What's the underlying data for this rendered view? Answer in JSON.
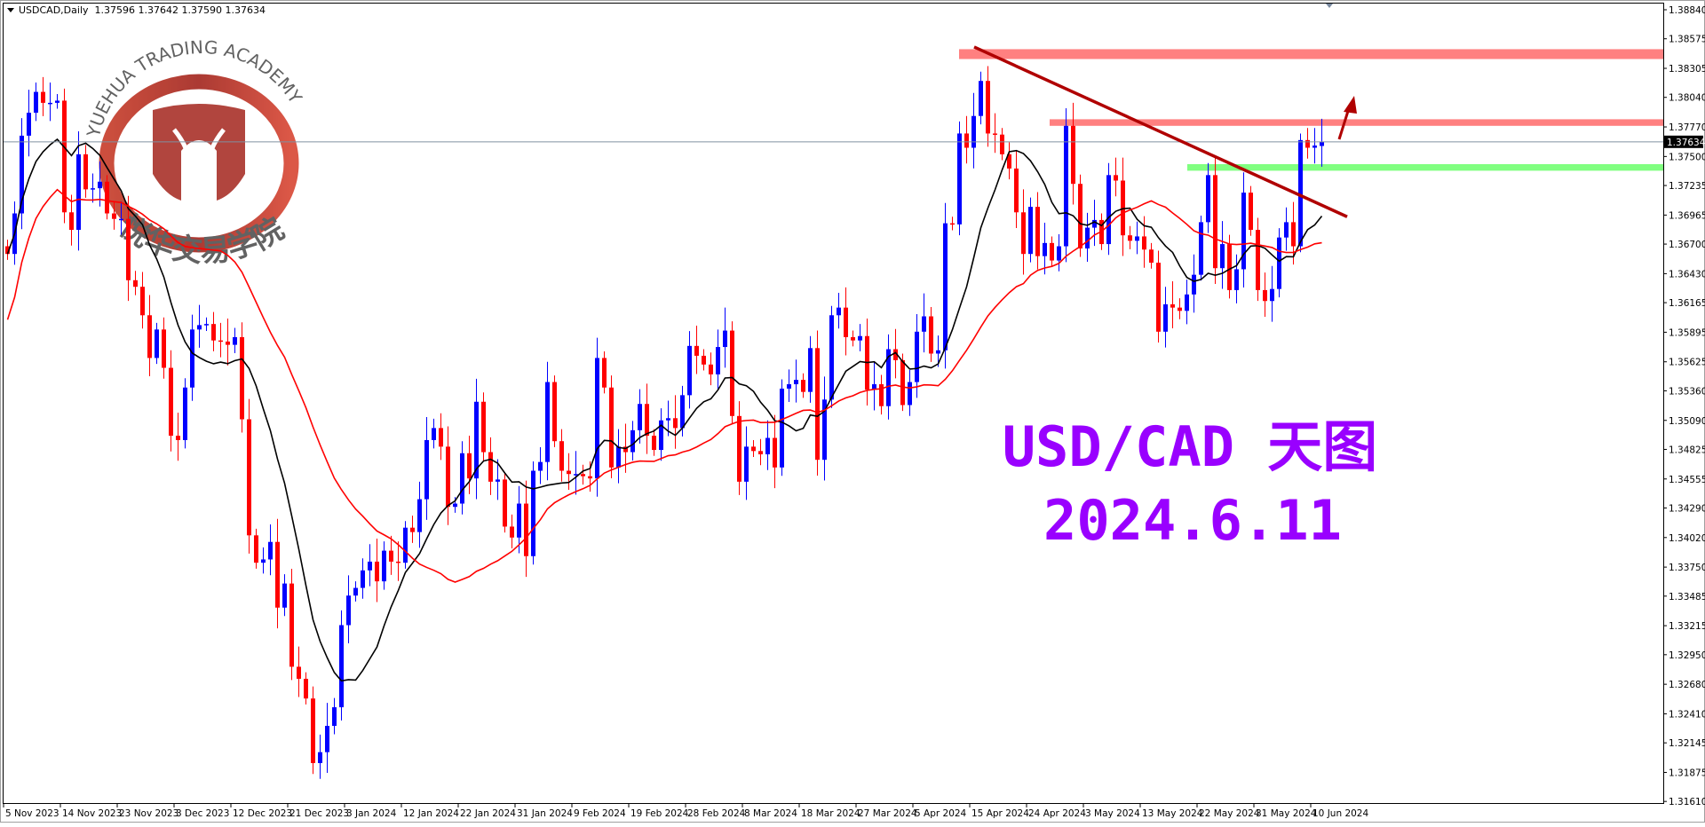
{
  "header": {
    "symbol": "USDCAD,Daily",
    "ohlc": "1.37596 1.37642 1.37590 1.37634"
  },
  "annotations": {
    "title_line1": "USD/CAD 天图",
    "title_line2": "2024.6.11",
    "title_color": "#9900ff",
    "resistance_zone_color": "#ff8080",
    "support_zone_color": "#80ff80",
    "trendline_color": "#b00000"
  },
  "watermark": {
    "text_en": "YUEHUA TRADING ACADEMY",
    "text_cn": "悦华交易学院"
  },
  "chart_data": {
    "type": "candlestick",
    "symbol": "USDCAD",
    "timeframe": "Daily",
    "bull_color": "#0000ff",
    "bear_color": "#ff0000",
    "ylim": [
      1.3161,
      1.3884
    ],
    "y_ticks": [
      "1.38840",
      "1.38575",
      "1.38305",
      "1.38040",
      "1.37770",
      "1.37500",
      "1.37235",
      "1.36965",
      "1.36700",
      "1.36430",
      "1.36165",
      "1.35895",
      "1.35625",
      "1.35360",
      "1.35090",
      "1.34825",
      "1.34555",
      "1.34290",
      "1.34020",
      "1.33750",
      "1.33485",
      "1.33215",
      "1.32950",
      "1.32680",
      "1.32410",
      "1.32145",
      "1.31875",
      "1.31610"
    ],
    "x_ticks": [
      "5 Nov 2023",
      "14 Nov 2023",
      "23 Nov 2023",
      "3 Dec 2023",
      "12 Dec 2023",
      "21 Dec 2023",
      "3 Jan 2024",
      "12 Jan 2024",
      "22 Jan 2024",
      "31 Jan 2024",
      "9 Feb 2024",
      "19 Feb 2024",
      "28 Feb 2024",
      "8 Mar 2024",
      "18 Mar 2024",
      "27 Mar 2024",
      "5 Apr 2024",
      "15 Apr 2024",
      "24 Apr 2024",
      "3 May 2024",
      "13 May 2024",
      "22 May 2024",
      "31 May 2024",
      "10 Jun 2024"
    ],
    "current_price": "1.37634",
    "first_open": 1.3668,
    "last_open": 1.37596,
    "close": [
      1.3661,
      1.3698,
      1.3769,
      1.379,
      1.3809,
      1.3799,
      1.3799,
      1.3801,
      1.3699,
      1.3683,
      1.3752,
      1.372,
      1.3721,
      1.3727,
      1.3698,
      1.3693,
      1.3693,
      1.3637,
      1.3631,
      1.3605,
      1.3566,
      1.3592,
      1.3557,
      1.3495,
      1.3491,
      1.3539,
      1.3592,
      1.3596,
      1.3597,
      1.3582,
      1.3581,
      1.3578,
      1.3585,
      1.351,
      1.3404,
      1.3379,
      1.3382,
      1.3398,
      1.3338,
      1.336,
      1.3284,
      1.3273,
      1.3255,
      1.3196,
      1.3206,
      1.323,
      1.3247,
      1.3322,
      1.3349,
      1.3356,
      1.3372,
      1.338,
      1.3362,
      1.339,
      1.338,
      1.3379,
      1.3411,
      1.3407,
      1.3437,
      1.3491,
      1.3502,
      1.3485,
      1.343,
      1.3433,
      1.3479,
      1.3456,
      1.3526,
      1.348,
      1.3453,
      1.3455,
      1.3412,
      1.3402,
      1.3433,
      1.3385,
      1.3463,
      1.3471,
      1.3544,
      1.349,
      1.3463,
      1.346,
      1.346,
      1.3458,
      1.3456,
      1.3566,
      1.3539,
      1.3466,
      1.3485,
      1.348,
      1.35,
      1.3524,
      1.3495,
      1.3482,
      1.3509,
      1.3511,
      1.3502,
      1.3532,
      1.3577,
      1.3568,
      1.356,
      1.3551,
      1.3576,
      1.3591,
      1.3513,
      1.3453,
      1.3485,
      1.3481,
      1.3478,
      1.3493,
      1.3466,
      1.3538,
      1.3542,
      1.3546,
      1.3535,
      1.3575,
      1.3473,
      1.3528,
      1.3605,
      1.3612,
      1.3585,
      1.3582,
      1.3586,
      1.3537,
      1.3542,
      1.3522,
      1.3574,
      1.3564,
      1.3523,
      1.3544,
      1.359,
      1.3604,
      1.357,
      1.3573,
      1.3689,
      1.3688,
      1.3771,
      1.3758,
      1.3787,
      1.3819,
      1.3771,
      1.377,
      1.3752,
      1.3739,
      1.3699,
      1.3661,
      1.3704,
      1.3659,
      1.3671,
      1.3655,
      1.3668,
      1.3778,
      1.3725,
      1.3666,
      1.3685,
      1.3692,
      1.367,
      1.3733,
      1.3728,
      1.3678,
      1.3673,
      1.3677,
      1.3665,
      1.3653,
      1.359,
      1.3615,
      1.3612,
      1.3609,
      1.3624,
      1.3642,
      1.369,
      1.3733,
      1.3648,
      1.367,
      1.3628,
      1.3647,
      1.3717,
      1.3683,
      1.3628,
      1.3618,
      1.3629,
      1.3676,
      1.369,
      1.3668,
      1.3765,
      1.3758,
      1.376,
      1.37634
    ],
    "zones": [
      {
        "kind": "resistance",
        "from": 1.3839,
        "to": 1.3848,
        "start_date": "12 Apr 2024"
      },
      {
        "kind": "resistance",
        "from": 1.3778,
        "to": 1.3784,
        "start_date": "25 Apr 2024"
      },
      {
        "kind": "support",
        "from": 1.3737,
        "to": 1.3743,
        "start_date": "21 May 2024"
      }
    ],
    "trendline": {
      "from_price": 1.385,
      "to_price": 1.3695,
      "from_date": "15 Apr 2024",
      "to_date": "13 Jun 2024"
    },
    "moving_averages": [
      {
        "color": "#000000"
      },
      {
        "color": "#ff0000"
      }
    ],
    "grid": false
  }
}
